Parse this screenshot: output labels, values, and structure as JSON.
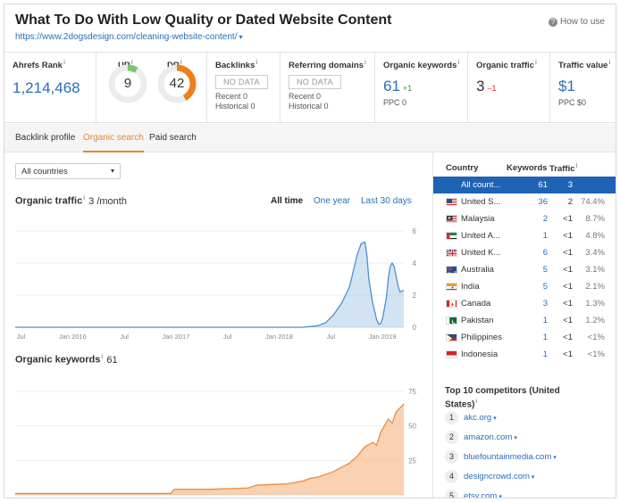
{
  "header": {
    "title": "What To Do With Low Quality or Dated Website Content",
    "url": "https://www.2dogsdesign.com/cleaning-website-content/",
    "url_caret": "▾",
    "how_to_use": "How to use",
    "help_icon": "?"
  },
  "metrics": {
    "ahrefs_rank": {
      "label": "Ahrefs Rank",
      "info": "i",
      "value": "1,214,468"
    },
    "ur": {
      "label": "UR",
      "info": "i",
      "value": "9",
      "score": 9
    },
    "dr": {
      "label": "DR",
      "info": "i",
      "value": "42",
      "score": 42
    },
    "backlinks": {
      "label": "Backlinks",
      "info": "i",
      "nodata": "NO DATA",
      "recent": "Recent 0",
      "historical": "Historical 0"
    },
    "referring_domains": {
      "label": "Referring domains",
      "info": "i",
      "nodata": "NO DATA",
      "recent": "Recent 0",
      "historical": "Historical 0"
    },
    "organic_keywords": {
      "label": "Organic keywords",
      "info": "i",
      "value": "61",
      "delta": "+1",
      "ppc": "PPC 0"
    },
    "organic_traffic": {
      "label": "Organic traffic",
      "info": "i",
      "value": "3",
      "delta": "–1"
    },
    "traffic_value": {
      "label": "Traffic value",
      "info": "i",
      "value": "$1",
      "ppc": "PPC $0"
    }
  },
  "tabs": [
    "Backlink profile",
    "Organic search",
    "Paid search"
  ],
  "active_tab": "Organic search",
  "country_select": {
    "value": "All countries",
    "caret": "▾"
  },
  "organic_traffic_section": {
    "title": "Organic traffic",
    "info": "i",
    "value": "3 /month",
    "ranges": [
      "All time",
      "One year",
      "Last 30 days"
    ],
    "active_range": "All time"
  },
  "organic_keywords_section": {
    "title": "Organic keywords",
    "info": "i",
    "value": "61"
  },
  "chart_data": [
    {
      "type": "area",
      "title": "Organic traffic",
      "x_ticks": [
        "Jul",
        "Jan 2016",
        "Jul",
        "Jan 2017",
        "Jul",
        "Jan 2018",
        "Jul",
        "Jan 2019"
      ],
      "y_ticks": [
        "6",
        "4",
        "2",
        "0"
      ],
      "ylim": [
        0,
        6
      ],
      "grid": true,
      "color": "#6aa6d8",
      "series": [
        {
          "x": [
            0.0,
            0.6,
            0.74,
            0.76,
            0.78,
            0.8,
            0.82,
            0.84,
            0.86,
            0.87,
            0.88,
            0.89,
            0.9,
            0.905,
            0.91,
            0.92,
            0.93,
            0.935,
            0.94,
            0.945,
            0.955,
            0.96,
            0.965,
            0.97,
            0.975,
            0.98,
            0.985,
            0.99,
            1.0
          ],
          "values": [
            0,
            0,
            0,
            0.05,
            0.1,
            0.3,
            0.8,
            1.5,
            2.5,
            3.5,
            4.5,
            5.2,
            5.3,
            4.5,
            3.0,
            1.5,
            0.5,
            0.2,
            0.2,
            0.5,
            1.8,
            3.0,
            3.8,
            4.0,
            3.8,
            3.2,
            2.6,
            2.2,
            2.3
          ]
        }
      ]
    },
    {
      "type": "area",
      "title": "Organic keywords",
      "y_ticks": [
        "75",
        "50",
        "25"
      ],
      "ylim": [
        0,
        75
      ],
      "grid": true,
      "color": "#f2a566",
      "series": [
        {
          "x": [
            0.0,
            0.2,
            0.4,
            0.41,
            0.5,
            0.6,
            0.62,
            0.7,
            0.72,
            0.74,
            0.76,
            0.78,
            0.8,
            0.82,
            0.84,
            0.86,
            0.88,
            0.9,
            0.92,
            0.93,
            0.94,
            0.95,
            0.96,
            0.97,
            0.98,
            0.99,
            1.0
          ],
          "values": [
            1,
            1,
            1,
            4,
            4,
            5,
            7,
            8,
            9,
            10,
            12,
            13,
            15,
            17,
            20,
            23,
            28,
            35,
            38,
            36,
            45,
            50,
            55,
            52,
            60,
            63,
            66
          ]
        }
      ]
    }
  ],
  "country_table": {
    "headers": {
      "country": "Country",
      "keywords": "Keywords",
      "traffic": "Traffic",
      "info": "i"
    },
    "rows": [
      {
        "name": "All count...",
        "keywords": "61",
        "traffic": "3",
        "pct": "",
        "flag": "none",
        "selected": true
      },
      {
        "name": "United S...",
        "keywords": "36",
        "traffic": "2",
        "pct": "74.4%",
        "flag": "us"
      },
      {
        "name": "Malaysia",
        "keywords": "2",
        "traffic": "<1",
        "pct": "8.7%",
        "flag": "my"
      },
      {
        "name": "United A...",
        "keywords": "1",
        "traffic": "<1",
        "pct": "4.8%",
        "flag": "ae"
      },
      {
        "name": "United K...",
        "keywords": "6",
        "traffic": "<1",
        "pct": "3.4%",
        "flag": "uk"
      },
      {
        "name": "Australia",
        "keywords": "5",
        "traffic": "<1",
        "pct": "3.1%",
        "flag": "au"
      },
      {
        "name": "India",
        "keywords": "5",
        "traffic": "<1",
        "pct": "2.1%",
        "flag": "in"
      },
      {
        "name": "Canada",
        "keywords": "3",
        "traffic": "<1",
        "pct": "1.3%",
        "flag": "ca"
      },
      {
        "name": "Pakistan",
        "keywords": "1",
        "traffic": "<1",
        "pct": "1.2%",
        "flag": "pk"
      },
      {
        "name": "Philippines",
        "keywords": "1",
        "traffic": "<1",
        "pct": "<1%",
        "flag": "ph"
      },
      {
        "name": "Indonesia",
        "keywords": "1",
        "traffic": "<1",
        "pct": "<1%",
        "flag": "id"
      }
    ]
  },
  "competitors": {
    "title": "Top 10 competitors (United States)",
    "info": "i",
    "items": [
      {
        "rank": "1",
        "domain": "akc.org"
      },
      {
        "rank": "2",
        "domain": "amazon.com"
      },
      {
        "rank": "3",
        "domain": "bluefountainmedia.com"
      },
      {
        "rank": "4",
        "domain": "designcrowd.com"
      },
      {
        "rank": "5",
        "domain": "etsy.com"
      }
    ],
    "caret": "▾"
  },
  "colors": {
    "accent": "#e8862e",
    "link": "#2a6ebb",
    "selected_row": "#1f63b4",
    "traffic_area": "#6aa6d8",
    "keywords_area": "#f2a566"
  }
}
